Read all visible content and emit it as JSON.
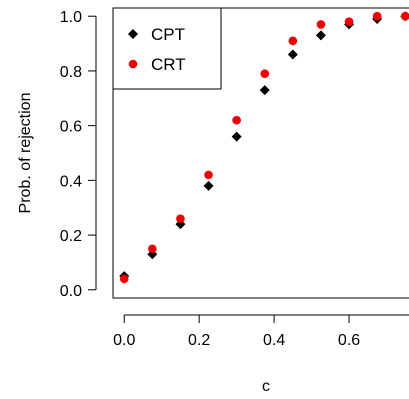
{
  "chart_data": {
    "type": "scatter",
    "xlabel": "c",
    "ylabel": "Prob. of rejection",
    "xlim": [
      -0.03,
      0.76
    ],
    "ylim": [
      -0.03,
      1.03
    ],
    "x_ticks": [
      "0.0",
      "0.2",
      "0.4",
      "0.6"
    ],
    "x_tick_values": [
      0.0,
      0.2,
      0.4,
      0.6
    ],
    "y_ticks": [
      "0.0",
      "0.2",
      "0.4",
      "0.6",
      "0.8",
      "1.0"
    ],
    "y_tick_values": [
      0.0,
      0.2,
      0.4,
      0.6,
      0.8,
      1.0
    ],
    "legend_position": "top-left",
    "series": [
      {
        "name": "CPT",
        "color": "#000000",
        "marker": "diamond",
        "x": [
          0.0,
          0.075,
          0.15,
          0.225,
          0.3,
          0.375,
          0.45,
          0.525,
          0.6,
          0.675,
          0.75
        ],
        "y": [
          0.05,
          0.13,
          0.24,
          0.38,
          0.56,
          0.73,
          0.86,
          0.93,
          0.97,
          0.99,
          1.0
        ]
      },
      {
        "name": "CRT",
        "color": "#ee0000",
        "marker": "circle",
        "x": [
          0.0,
          0.075,
          0.15,
          0.225,
          0.3,
          0.375,
          0.45,
          0.525,
          0.6,
          0.675,
          0.75
        ],
        "y": [
          0.04,
          0.15,
          0.26,
          0.42,
          0.62,
          0.79,
          0.91,
          0.97,
          0.98,
          1.0,
          1.0
        ]
      }
    ]
  }
}
